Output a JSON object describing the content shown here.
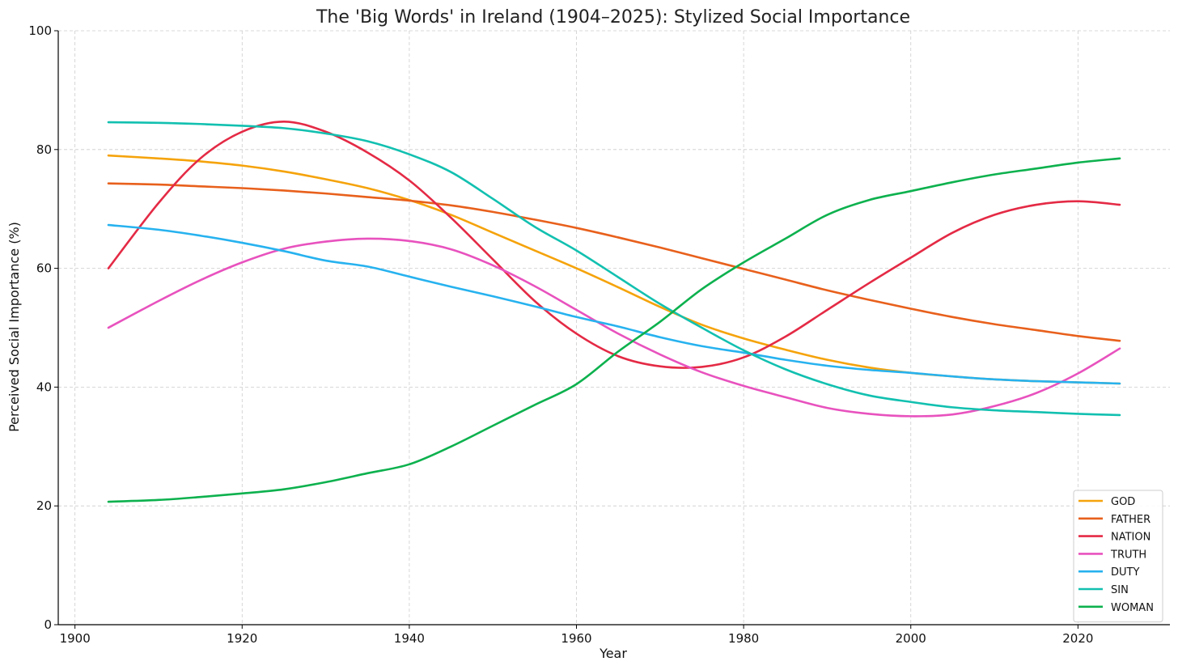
{
  "chart_data": {
    "type": "line",
    "title": "The 'Big Words' in Ireland (1904–2025): Stylized Social Importance",
    "xlabel": "Year",
    "ylabel": "Perceived Social Importance (%)",
    "xlim": [
      1898,
      2031
    ],
    "ylim": [
      0,
      100
    ],
    "xticks": [
      1900,
      1920,
      1940,
      1960,
      1980,
      2000,
      2020
    ],
    "yticks": [
      0,
      20,
      40,
      60,
      80,
      100
    ],
    "grid": true,
    "legend_position": "lower-right",
    "x": [
      1904,
      1910,
      1915,
      1920,
      1925,
      1930,
      1935,
      1940,
      1945,
      1950,
      1955,
      1960,
      1965,
      1970,
      1975,
      1980,
      1985,
      1990,
      1995,
      2000,
      2005,
      2010,
      2015,
      2020,
      2025
    ],
    "series": [
      {
        "name": "GOD",
        "color": "#f5a30b",
        "values": [
          79.0,
          78.5,
          78.0,
          77.3,
          76.3,
          75.0,
          73.5,
          71.5,
          69.0,
          66.0,
          63.0,
          60.0,
          56.8,
          53.5,
          50.5,
          48.2,
          46.3,
          44.6,
          43.3,
          42.4,
          41.8,
          41.3,
          41.0,
          40.8,
          40.6
        ]
      },
      {
        "name": "FATHER",
        "color": "#e8601c",
        "values": [
          74.3,
          74.1,
          73.8,
          73.5,
          73.1,
          72.6,
          72.0,
          71.4,
          70.6,
          69.5,
          68.2,
          66.8,
          65.2,
          63.5,
          61.7,
          59.9,
          58.1,
          56.3,
          54.7,
          53.2,
          51.8,
          50.6,
          49.6,
          48.6,
          47.8
        ]
      },
      {
        "name": "NATION",
        "color": "#e42a45",
        "values": [
          60.0,
          71.0,
          78.5,
          83.0,
          84.7,
          83.0,
          79.5,
          74.8,
          68.5,
          61.5,
          54.5,
          49.0,
          45.2,
          43.5,
          43.4,
          45.0,
          48.5,
          53.0,
          57.5,
          61.8,
          66.0,
          69.0,
          70.7,
          71.3,
          70.7
        ]
      },
      {
        "name": "TRUTH",
        "color": "#e852be",
        "values": [
          50.0,
          54.5,
          58.0,
          61.0,
          63.3,
          64.5,
          65.0,
          64.6,
          63.2,
          60.5,
          57.0,
          53.0,
          49.0,
          45.5,
          42.5,
          40.2,
          38.3,
          36.5,
          35.5,
          35.1,
          35.4,
          36.8,
          39.0,
          42.3,
          46.5
        ]
      },
      {
        "name": "DUTY",
        "color": "#27b2ef",
        "values": [
          67.3,
          66.5,
          65.5,
          64.3,
          62.9,
          61.3,
          60.3,
          58.6,
          56.9,
          55.3,
          53.6,
          51.8,
          50.2,
          48.4,
          46.9,
          45.8,
          44.6,
          43.6,
          42.9,
          42.4,
          41.8,
          41.3,
          41.0,
          40.8,
          40.6
        ]
      },
      {
        "name": "SIN",
        "color": "#12c0b0",
        "values": [
          84.6,
          84.5,
          84.3,
          84.0,
          83.6,
          82.7,
          81.4,
          79.2,
          76.2,
          71.7,
          67.0,
          63.0,
          58.5,
          54.0,
          50.0,
          46.2,
          43.0,
          40.5,
          38.6,
          37.5,
          36.6,
          36.1,
          35.8,
          35.5,
          35.3
        ]
      },
      {
        "name": "WOMAN",
        "color": "#0db14e",
        "values": [
          20.7,
          21.0,
          21.5,
          22.1,
          22.8,
          24.0,
          25.5,
          27.0,
          30.0,
          33.5,
          37.0,
          40.5,
          46.0,
          51.0,
          56.5,
          61.0,
          65.0,
          69.0,
          71.5,
          73.0,
          74.5,
          75.8,
          76.8,
          77.8,
          78.5
        ]
      }
    ]
  }
}
